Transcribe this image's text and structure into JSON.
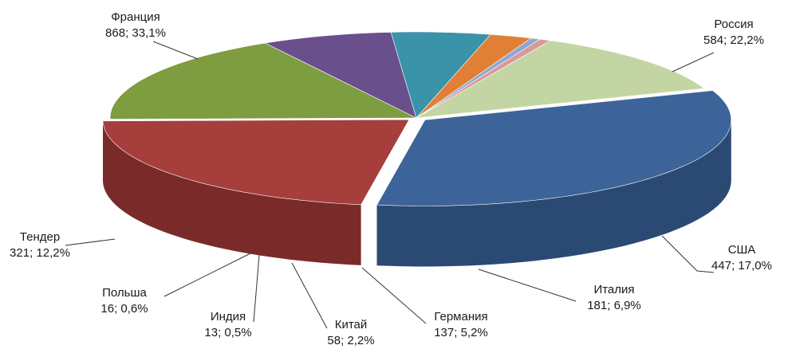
{
  "chart_data": {
    "type": "pie",
    "title": "",
    "legend": "none",
    "slices": [
      {
        "label": "Франция",
        "value": 868,
        "percent": "33,1%",
        "value_text": "868; 33,1%",
        "color": "#3C6499",
        "side": "#2B4A73"
      },
      {
        "label": "Россия",
        "value": 584,
        "percent": "22,2%",
        "value_text": "584; 22,2%",
        "color": "#A63E3B",
        "side": "#7A2B29"
      },
      {
        "label": "США",
        "value": 447,
        "percent": "17,0%",
        "value_text": "447; 17,0%",
        "color": "#7E9C40",
        "side": "#3F5420"
      },
      {
        "label": "Италия",
        "value": 181,
        "percent": "6,9%",
        "value_text": "181; 6,9%",
        "color": "#6A4F8D",
        "side": "#3F2E58"
      },
      {
        "label": "Германия",
        "value": 137,
        "percent": "5,2%",
        "value_text": "137; 5,2%",
        "color": "#3A93A8",
        "side": "#2A7486"
      },
      {
        "label": "Китай",
        "value": 58,
        "percent": "2,2%",
        "value_text": "58; 2,2%",
        "color": "#E07F35",
        "side": "#C66A25"
      },
      {
        "label": "Индия",
        "value": 13,
        "percent": "0,5%",
        "value_text": "13; 0,5%",
        "color": "#8FA6D6",
        "side": "#7389BC"
      },
      {
        "label": "Польша",
        "value": 16,
        "percent": "0,6%",
        "value_text": "16; 0,6%",
        "color": "#D89A98",
        "side": "#BC807E"
      },
      {
        "label": "Тендер",
        "value": 321,
        "percent": "12,2%",
        "value_text": "321; 12,2%",
        "color": "#C3D5A3",
        "side": "#A6BF7E"
      }
    ]
  }
}
